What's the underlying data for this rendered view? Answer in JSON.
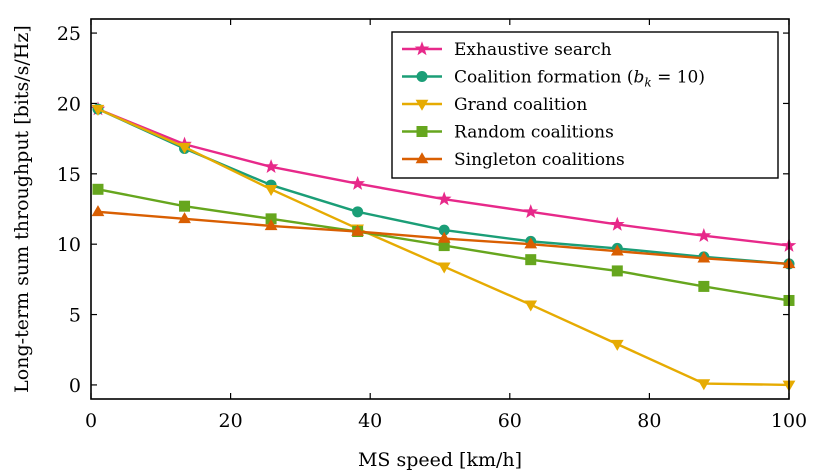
{
  "chart_data": {
    "type": "line",
    "title": "",
    "xlabel": "MS speed [km/h]",
    "ylabel": "Long-term sum throughput [bits/s/Hz]",
    "xlim": [
      0,
      100
    ],
    "ylim": [
      -1,
      26
    ],
    "xticks": [
      0,
      20,
      40,
      60,
      80,
      100
    ],
    "yticks": [
      0,
      5,
      10,
      15,
      20,
      25
    ],
    "grid": false,
    "legend_position": "top-right",
    "x": [
      1,
      13.4,
      25.8,
      38.2,
      50.6,
      63,
      75.4,
      87.8,
      100
    ],
    "series": [
      {
        "name": "Exhaustive search",
        "marker": "star",
        "color": "#e7298a",
        "values": [
          19.6,
          17.1,
          15.5,
          14.3,
          13.2,
          12.3,
          11.4,
          10.6,
          9.9
        ]
      },
      {
        "name": "Coalition formation (b_k = 10)",
        "marker": "circle",
        "color": "#1b9e77",
        "values": [
          19.6,
          16.8,
          14.2,
          12.3,
          11.0,
          10.2,
          9.7,
          9.1,
          8.6
        ]
      },
      {
        "name": "Grand coalition",
        "marker": "triangle-down",
        "color": "#e6ab02",
        "values": [
          19.6,
          16.9,
          13.9,
          11.1,
          8.4,
          5.7,
          2.9,
          0.1,
          0.0
        ]
      },
      {
        "name": "Random coalitions",
        "marker": "square",
        "color": "#66a61e",
        "values": [
          13.9,
          12.7,
          11.8,
          10.9,
          9.9,
          8.9,
          8.1,
          7.0,
          6.0
        ]
      },
      {
        "name": "Singleton coalitions",
        "marker": "triangle-up",
        "color": "#d95f02",
        "values": [
          12.3,
          11.8,
          11.3,
          10.9,
          10.4,
          10.0,
          9.5,
          9.0,
          8.6
        ]
      }
    ],
    "legend": {
      "labels": [
        "Exhaustive search",
        "Coalition formation (",
        "Grand coalition",
        "Random coalitions",
        "Singleton coalitions"
      ],
      "math_suffix": {
        "var": "b",
        "sub": "k",
        "rest": " = 10)"
      }
    }
  }
}
